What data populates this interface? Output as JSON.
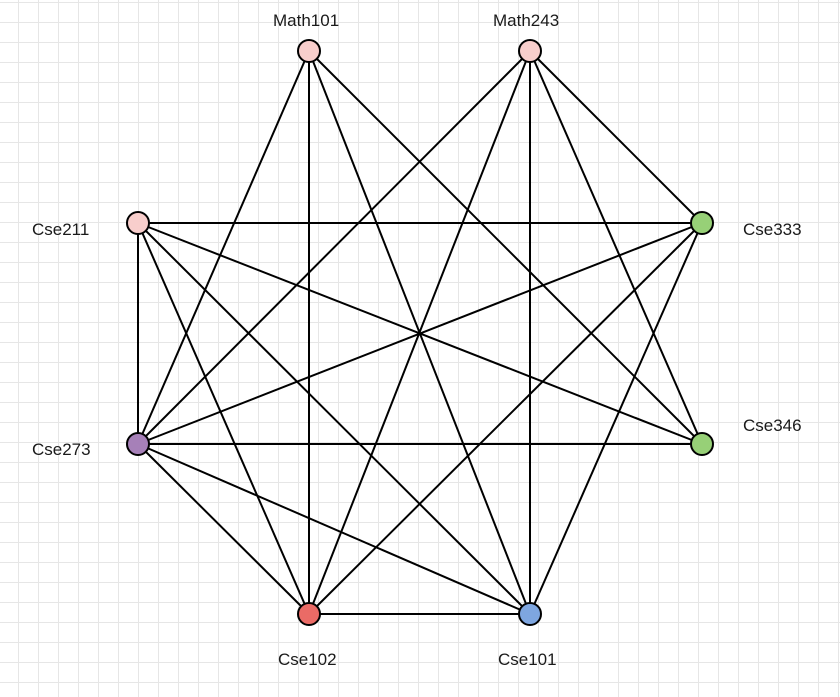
{
  "nodes": [
    {
      "id": "math101",
      "label": "Math101",
      "color": "#f8cecc"
    },
    {
      "id": "math243",
      "label": "Math243",
      "color": "#f8cecc"
    },
    {
      "id": "cse211",
      "label": "Cse211",
      "color": "#f8cecc"
    },
    {
      "id": "cse333",
      "label": "Cse333",
      "color": "#97d077"
    },
    {
      "id": "cse273",
      "label": "Cse273",
      "color": "#a680b8"
    },
    {
      "id": "cse346",
      "label": "Cse346",
      "color": "#97d077"
    },
    {
      "id": "cse102",
      "label": "Cse102",
      "color": "#ea6b66"
    },
    {
      "id": "cse101",
      "label": "Cse101",
      "color": "#7ea6e0"
    }
  ],
  "edges": [
    [
      "math101",
      "cse273"
    ],
    [
      "math101",
      "cse102"
    ],
    [
      "math101",
      "cse101"
    ],
    [
      "math101",
      "cse346"
    ],
    [
      "math243",
      "cse273"
    ],
    [
      "math243",
      "cse102"
    ],
    [
      "math243",
      "cse101"
    ],
    [
      "math243",
      "cse333"
    ],
    [
      "math243",
      "cse346"
    ],
    [
      "cse211",
      "cse333"
    ],
    [
      "cse211",
      "cse346"
    ],
    [
      "cse211",
      "cse273"
    ],
    [
      "cse211",
      "cse102"
    ],
    [
      "cse211",
      "cse101"
    ],
    [
      "cse333",
      "cse273"
    ],
    [
      "cse333",
      "cse102"
    ],
    [
      "cse333",
      "cse101"
    ],
    [
      "cse273",
      "cse346"
    ],
    [
      "cse273",
      "cse102"
    ],
    [
      "cse273",
      "cse101"
    ],
    [
      "cse102",
      "cse101"
    ]
  ],
  "colors": {
    "stroke": "#000000",
    "grid": "#e6e6e6",
    "background": "#ffffff"
  }
}
